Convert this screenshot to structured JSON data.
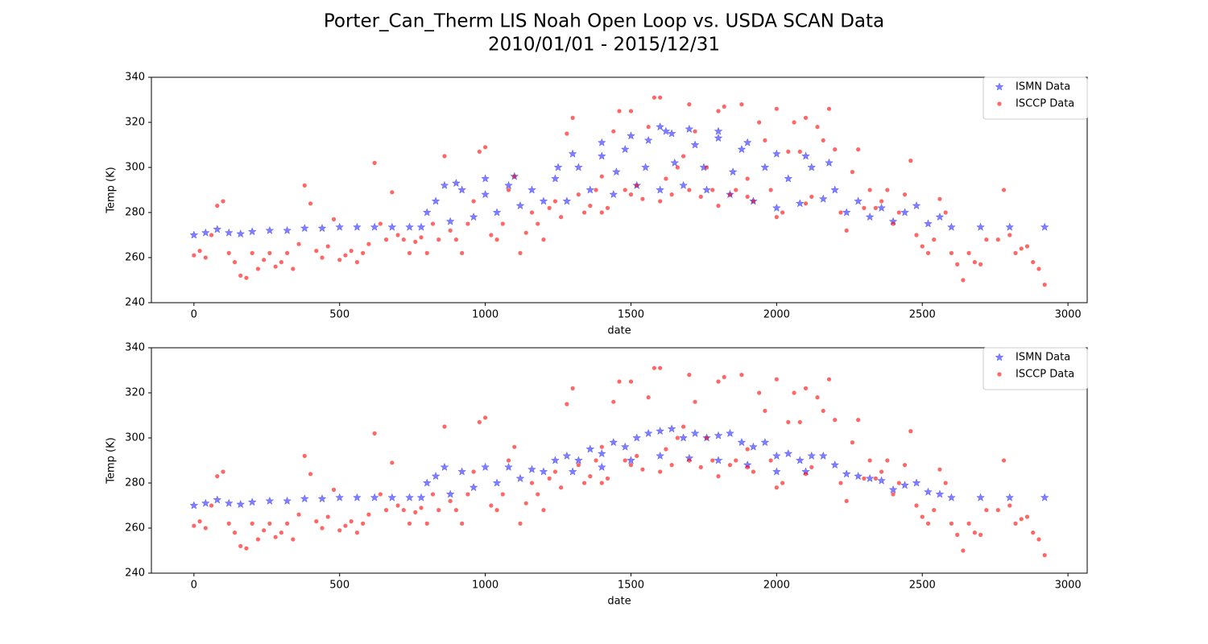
{
  "title": "Porter_Can_Therm LIS Noah Open Loop vs. USDA SCAN Data",
  "subtitle": "2010/01/01 - 2015/12/31",
  "chart_data": [
    {
      "type": "scatter",
      "xlabel": "date",
      "ylabel": "Temp (K)",
      "xlim": [
        -146,
        3066
      ],
      "ylim": [
        240,
        340
      ],
      "xticks": [
        0,
        500,
        1000,
        1500,
        2000,
        2500,
        3000
      ],
      "yticks": [
        240,
        260,
        280,
        300,
        320,
        340
      ],
      "legend": "upper right",
      "grid": false,
      "series": [
        {
          "name": "ISMN Data",
          "color": "#0000ff",
          "marker": "star",
          "x": [
            0,
            40,
            80,
            120,
            160,
            200,
            260,
            320,
            380,
            440,
            500,
            560,
            620,
            680,
            740,
            780,
            800,
            830,
            860,
            880,
            920,
            960,
            1000,
            1040,
            1080,
            1120,
            1160,
            1200,
            1240,
            1280,
            1320,
            1360,
            1400,
            1440,
            1480,
            1520,
            1560,
            1600,
            1640,
            1680,
            1720,
            1760,
            1800,
            1840,
            1880,
            1920,
            1960,
            2000,
            2040,
            2080,
            2120,
            2160,
            2200,
            2240,
            2280,
            2320,
            2360,
            2400,
            2440,
            2480,
            2520,
            2560,
            2600,
            2700,
            2800,
            2920,
            1300,
            1400,
            1500,
            1600,
            1620,
            1700,
            1800,
            1900,
            2000,
            2100,
            2180,
            1250,
            1100,
            1000,
            900,
            1550,
            1650,
            1750,
            1850,
            1450
          ],
          "values": [
            270,
            271,
            272.5,
            271,
            270.5,
            271.5,
            272,
            272,
            273,
            273,
            273.5,
            273.5,
            273.5,
            273.5,
            273.5,
            273.5,
            280,
            285,
            292,
            276,
            290,
            278,
            288,
            280,
            292,
            283,
            290,
            285,
            295,
            285,
            300,
            290,
            305,
            288,
            308,
            292,
            312,
            290,
            315,
            292,
            310,
            290,
            313,
            288,
            308,
            285,
            300,
            282,
            295,
            284,
            300,
            286,
            290,
            280,
            285,
            278,
            282,
            276,
            280,
            283,
            275,
            278,
            273.5,
            273.5,
            273.5,
            273.5,
            306,
            311,
            314,
            318,
            316,
            317,
            316,
            311,
            306,
            305,
            302,
            300,
            296,
            295,
            293,
            300,
            302,
            300,
            298,
            298
          ]
        },
        {
          "name": "ISCCP Data",
          "color": "#ff0000",
          "marker": "circle",
          "x": [
            0,
            20,
            40,
            60,
            80,
            100,
            120,
            140,
            160,
            180,
            200,
            220,
            240,
            260,
            280,
            300,
            320,
            340,
            360,
            380,
            400,
            420,
            440,
            460,
            480,
            500,
            520,
            540,
            560,
            580,
            600,
            620,
            640,
            660,
            680,
            700,
            720,
            740,
            760,
            780,
            800,
            820,
            840,
            860,
            880,
            900,
            920,
            940,
            960,
            980,
            1000,
            1020,
            1040,
            1060,
            1080,
            1100,
            1120,
            1140,
            1160,
            1180,
            1200,
            1220,
            1240,
            1260,
            1280,
            1300,
            1320,
            1340,
            1360,
            1380,
            1400,
            1420,
            1440,
            1460,
            1480,
            1500,
            1520,
            1540,
            1560,
            1580,
            1600,
            1620,
            1640,
            1660,
            1680,
            1700,
            1720,
            1740,
            1760,
            1780,
            1800,
            1820,
            1840,
            1860,
            1880,
            1900,
            1920,
            1940,
            1960,
            1980,
            2000,
            2020,
            2040,
            2060,
            2080,
            2100,
            2120,
            2140,
            2160,
            2180,
            2200,
            2220,
            2240,
            2260,
            2280,
            2300,
            2320,
            2340,
            2360,
            2380,
            2400,
            2420,
            2440,
            2460,
            2480,
            2500,
            2520,
            2540,
            2560,
            2580,
            2600,
            2620,
            2640,
            2660,
            2680,
            2700,
            2720,
            2760,
            2780,
            2800,
            2820,
            2840,
            2860,
            2880,
            2900,
            2920,
            1400,
            1600,
            1800,
            2000,
            1500,
            1700,
            1900,
            2100
          ],
          "values": [
            261,
            263,
            260,
            270,
            283,
            285,
            262,
            258,
            252,
            251,
            262,
            255,
            259,
            262,
            256,
            258,
            262,
            255,
            266,
            292,
            284,
            263,
            260,
            265,
            277,
            259,
            261,
            263,
            258,
            262,
            266,
            302,
            275,
            268,
            289,
            270,
            268,
            262,
            267,
            269,
            262,
            275,
            268,
            305,
            272,
            268,
            262,
            275,
            285,
            307,
            309,
            270,
            268,
            275,
            290,
            296,
            262,
            271,
            280,
            275,
            268,
            282,
            285,
            278,
            315,
            322,
            288,
            280,
            283,
            290,
            296,
            282,
            316,
            325,
            290,
            325,
            292,
            286,
            318,
            331,
            331,
            295,
            288,
            300,
            305,
            328,
            316,
            287,
            300,
            290,
            325,
            327,
            288,
            290,
            328,
            295,
            285,
            320,
            312,
            290,
            326,
            280,
            307,
            320,
            307,
            322,
            287,
            318,
            312,
            326,
            308,
            280,
            272,
            298,
            308,
            282,
            290,
            282,
            285,
            290,
            275,
            280,
            288,
            303,
            270,
            265,
            262,
            268,
            286,
            280,
            262,
            257,
            250,
            262,
            258,
            257,
            268,
            268,
            290,
            270,
            262,
            264,
            265,
            258,
            255,
            248,
            280,
            285,
            283,
            278,
            288,
            290,
            287,
            284
          ]
        }
      ]
    },
    {
      "type": "scatter",
      "xlabel": "date",
      "ylabel": "Temp (K)",
      "xlim": [
        -146,
        3066
      ],
      "ylim": [
        240,
        340
      ],
      "xticks": [
        0,
        500,
        1000,
        1500,
        2000,
        2500,
        3000
      ],
      "yticks": [
        240,
        260,
        280,
        300,
        320,
        340
      ],
      "legend": "upper right",
      "grid": false,
      "series": [
        {
          "name": "ISMN Data",
          "color": "#0000ff",
          "marker": "star",
          "x": [
            0,
            40,
            80,
            120,
            160,
            200,
            260,
            320,
            380,
            440,
            500,
            560,
            620,
            680,
            740,
            780,
            800,
            830,
            860,
            880,
            920,
            960,
            1000,
            1040,
            1080,
            1120,
            1160,
            1200,
            1240,
            1280,
            1320,
            1360,
            1400,
            1440,
            1480,
            1520,
            1560,
            1600,
            1640,
            1680,
            1720,
            1760,
            1800,
            1840,
            1880,
            1920,
            1960,
            2000,
            2040,
            2080,
            2120,
            2160,
            2200,
            2240,
            2280,
            2320,
            2360,
            2400,
            2440,
            2480,
            2520,
            2560,
            2600,
            2700,
            2800,
            2920,
            1300,
            1400,
            1500,
            1600,
            1700,
            1800,
            1900,
            2000,
            2100
          ],
          "values": [
            270,
            271,
            272.5,
            271,
            270.5,
            271.5,
            272,
            272,
            273,
            273,
            273.5,
            273.5,
            273.5,
            273.5,
            273.5,
            273.5,
            280,
            283,
            287,
            275,
            285,
            278,
            287,
            280,
            287,
            282,
            286,
            285,
            290,
            292,
            290,
            295,
            293,
            298,
            296,
            300,
            302,
            303,
            304,
            300,
            302,
            300,
            301,
            302,
            298,
            296,
            298,
            292,
            293,
            290,
            292,
            292,
            288,
            284,
            283,
            282,
            281,
            277,
            279,
            280,
            276,
            275,
            273.5,
            273.5,
            273.5,
            273.5,
            285,
            287,
            290,
            292,
            291,
            290,
            288,
            285,
            285
          ]
        },
        {
          "name": "ISCCP Data",
          "color": "#ff0000",
          "marker": "circle",
          "x": [
            0,
            20,
            40,
            60,
            80,
            100,
            120,
            140,
            160,
            180,
            200,
            220,
            240,
            260,
            280,
            300,
            320,
            340,
            360,
            380,
            400,
            420,
            440,
            460,
            480,
            500,
            520,
            540,
            560,
            580,
            600,
            620,
            640,
            660,
            680,
            700,
            720,
            740,
            760,
            780,
            800,
            820,
            840,
            860,
            880,
            900,
            920,
            940,
            960,
            980,
            1000,
            1020,
            1040,
            1060,
            1080,
            1100,
            1120,
            1140,
            1160,
            1180,
            1200,
            1220,
            1240,
            1260,
            1280,
            1300,
            1320,
            1340,
            1360,
            1380,
            1400,
            1420,
            1440,
            1460,
            1480,
            1500,
            1520,
            1540,
            1560,
            1580,
            1600,
            1620,
            1640,
            1660,
            1680,
            1700,
            1720,
            1740,
            1760,
            1780,
            1800,
            1820,
            1840,
            1860,
            1880,
            1900,
            1920,
            1940,
            1960,
            1980,
            2000,
            2020,
            2040,
            2060,
            2080,
            2100,
            2120,
            2140,
            2160,
            2180,
            2200,
            2220,
            2240,
            2260,
            2280,
            2300,
            2320,
            2340,
            2360,
            2380,
            2400,
            2420,
            2440,
            2460,
            2480,
            2500,
            2520,
            2540,
            2560,
            2580,
            2600,
            2620,
            2640,
            2660,
            2680,
            2700,
            2720,
            2760,
            2780,
            2800,
            2820,
            2840,
            2860,
            2880,
            2900,
            2920,
            1400,
            1600,
            1800,
            2000,
            1500,
            1700,
            1900,
            2100
          ],
          "values": [
            261,
            263,
            260,
            270,
            283,
            285,
            262,
            258,
            252,
            251,
            262,
            255,
            259,
            262,
            256,
            258,
            262,
            255,
            266,
            292,
            284,
            263,
            260,
            265,
            277,
            259,
            261,
            263,
            258,
            262,
            266,
            302,
            275,
            268,
            289,
            270,
            268,
            262,
            267,
            269,
            262,
            275,
            268,
            305,
            272,
            268,
            262,
            275,
            285,
            307,
            309,
            270,
            268,
            275,
            290,
            296,
            262,
            271,
            280,
            275,
            268,
            282,
            285,
            278,
            315,
            322,
            288,
            280,
            283,
            290,
            296,
            282,
            316,
            325,
            290,
            325,
            292,
            286,
            318,
            331,
            331,
            295,
            288,
            300,
            305,
            328,
            316,
            287,
            300,
            290,
            325,
            327,
            288,
            290,
            328,
            295,
            285,
            320,
            312,
            290,
            326,
            280,
            307,
            320,
            307,
            322,
            287,
            318,
            312,
            326,
            308,
            280,
            272,
            298,
            308,
            282,
            290,
            282,
            285,
            290,
            275,
            280,
            288,
            303,
            270,
            265,
            262,
            268,
            286,
            280,
            262,
            257,
            250,
            262,
            258,
            257,
            268,
            268,
            290,
            270,
            262,
            264,
            265,
            258,
            255,
            248,
            280,
            285,
            283,
            278,
            288,
            290,
            287,
            284
          ]
        }
      ]
    }
  ]
}
